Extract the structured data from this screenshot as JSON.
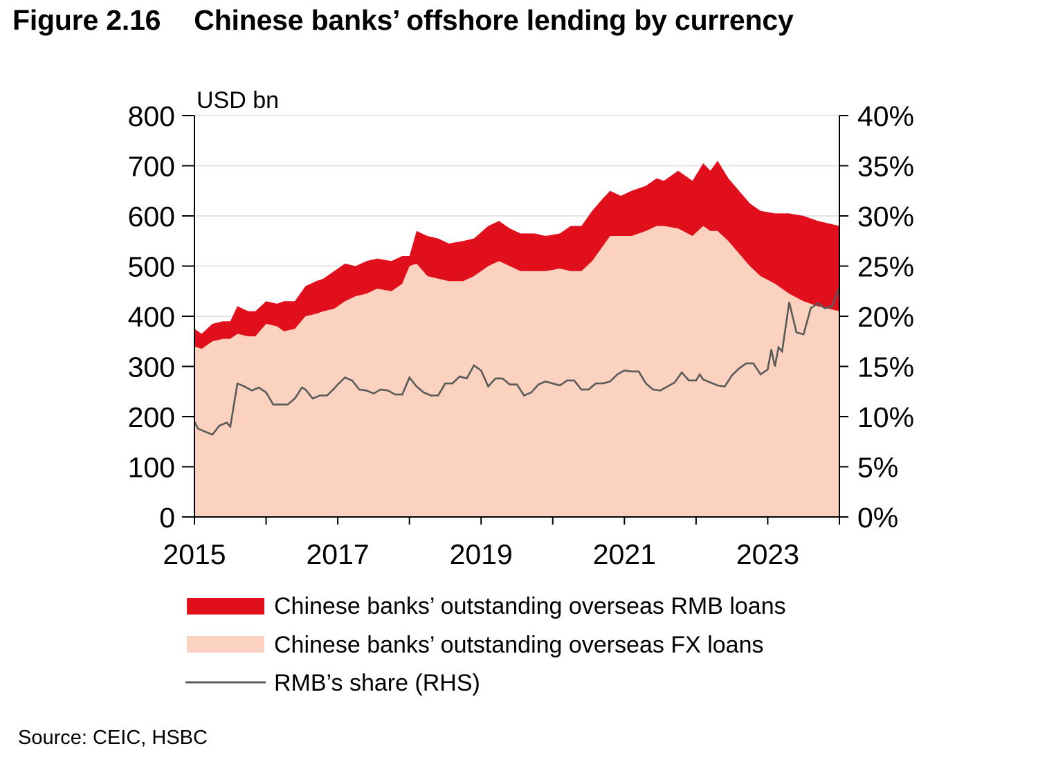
{
  "figure": {
    "number": "Figure 2.16",
    "title": "Chinese banks’ offshore lending by currency",
    "source": "Source: CEIC, HSBC"
  },
  "colors": {
    "rmb_loans": "#e00f1b",
    "fx_loans": "#fad2bf",
    "share_line": "#5a5a5a",
    "grid": "#e3e3e3",
    "axis": "#000000"
  },
  "chart_data": {
    "type": "area",
    "unit_left": "USD bn",
    "x_range": [
      2015,
      2024
    ],
    "x_ticks": [
      "2015",
      "2017",
      "2019",
      "2021",
      "2023"
    ],
    "y_left": {
      "range": [
        0,
        800
      ],
      "ticks": [
        "0",
        "100",
        "200",
        "300",
        "400",
        "500",
        "600",
        "700",
        "800"
      ]
    },
    "y_right": {
      "range": [
        0,
        40
      ],
      "ticks": [
        "0%",
        "5%",
        "10%",
        "15%",
        "20%",
        "25%",
        "30%",
        "35%",
        "40%"
      ]
    },
    "grid": true,
    "legend_placement": "bottom",
    "series": [
      {
        "name": "Chinese banks’ outstanding overseas RMB loans",
        "kind": "stacked-area-top",
        "x": [
          2015.0,
          2015.1,
          2015.25,
          2015.4,
          2015.5,
          2015.6,
          2015.75,
          2015.85,
          2016.0,
          2016.15,
          2016.25,
          2016.4,
          2016.55,
          2016.7,
          2016.8,
          2016.95,
          2017.1,
          2017.25,
          2017.4,
          2017.55,
          2017.75,
          2017.9,
          2018.0,
          2018.1,
          2018.25,
          2018.4,
          2018.55,
          2018.75,
          2018.9,
          2019.1,
          2019.25,
          2019.4,
          2019.55,
          2019.75,
          2019.9,
          2020.1,
          2020.25,
          2020.4,
          2020.55,
          2020.7,
          2020.8,
          2020.95,
          2021.1,
          2021.3,
          2021.45,
          2021.55,
          2021.75,
          2021.95,
          2022.1,
          2022.2,
          2022.3,
          2022.45,
          2022.6,
          2022.75,
          2022.9,
          2023.1,
          2023.3,
          2023.5,
          2023.7,
          2023.85,
          2024.0
        ],
        "values": [
          375,
          365,
          385,
          390,
          390,
          420,
          410,
          410,
          430,
          425,
          430,
          430,
          460,
          470,
          475,
          490,
          505,
          500,
          510,
          515,
          510,
          520,
          520,
          570,
          560,
          555,
          545,
          550,
          555,
          580,
          590,
          575,
          565,
          565,
          560,
          565,
          580,
          580,
          610,
          635,
          650,
          640,
          650,
          660,
          675,
          670,
          690,
          670,
          705,
          690,
          710,
          675,
          650,
          625,
          610,
          605,
          605,
          600,
          590,
          585,
          580
        ]
      },
      {
        "name": "Chinese banks’ outstanding overseas FX loans",
        "kind": "area",
        "x": [
          2015.0,
          2015.1,
          2015.25,
          2015.4,
          2015.5,
          2015.6,
          2015.75,
          2015.85,
          2016.0,
          2016.15,
          2016.25,
          2016.4,
          2016.55,
          2016.7,
          2016.8,
          2016.95,
          2017.1,
          2017.25,
          2017.4,
          2017.55,
          2017.75,
          2017.9,
          2018.0,
          2018.1,
          2018.25,
          2018.4,
          2018.55,
          2018.75,
          2018.9,
          2019.1,
          2019.25,
          2019.4,
          2019.55,
          2019.75,
          2019.9,
          2020.1,
          2020.25,
          2020.4,
          2020.55,
          2020.7,
          2020.8,
          2020.95,
          2021.1,
          2021.3,
          2021.45,
          2021.55,
          2021.75,
          2021.95,
          2022.1,
          2022.2,
          2022.3,
          2022.45,
          2022.6,
          2022.75,
          2022.9,
          2023.1,
          2023.3,
          2023.5,
          2023.7,
          2023.85,
          2024.0
        ],
        "values": [
          340,
          335,
          350,
          355,
          355,
          365,
          360,
          360,
          385,
          380,
          370,
          375,
          400,
          405,
          410,
          415,
          430,
          440,
          445,
          455,
          450,
          465,
          500,
          505,
          480,
          475,
          470,
          470,
          480,
          500,
          510,
          500,
          490,
          490,
          490,
          495,
          490,
          490,
          510,
          540,
          560,
          560,
          560,
          570,
          580,
          580,
          575,
          560,
          580,
          570,
          570,
          550,
          525,
          500,
          480,
          465,
          445,
          430,
          420,
          415,
          410
        ]
      },
      {
        "name": "RMB’s share (RHS)",
        "kind": "line",
        "axis": "right",
        "x": [
          2015.0,
          2015.05,
          2015.15,
          2015.25,
          2015.35,
          2015.45,
          2015.5,
          2015.6,
          2015.7,
          2015.8,
          2015.9,
          2016.0,
          2016.1,
          2016.2,
          2016.3,
          2016.4,
          2016.5,
          2016.55,
          2016.65,
          2016.75,
          2016.85,
          2016.95,
          2017.0,
          2017.1,
          2017.2,
          2017.3,
          2017.4,
          2017.5,
          2017.6,
          2017.7,
          2017.8,
          2017.9,
          2018.0,
          2018.1,
          2018.2,
          2018.3,
          2018.4,
          2018.5,
          2018.6,
          2018.7,
          2018.8,
          2018.9,
          2019.0,
          2019.1,
          2019.2,
          2019.3,
          2019.4,
          2019.5,
          2019.6,
          2019.7,
          2019.8,
          2019.9,
          2020.0,
          2020.1,
          2020.2,
          2020.3,
          2020.4,
          2020.5,
          2020.6,
          2020.7,
          2020.8,
          2020.9,
          2021.0,
          2021.1,
          2021.2,
          2021.3,
          2021.4,
          2021.5,
          2021.6,
          2021.7,
          2021.8,
          2021.9,
          2022.0,
          2022.05,
          2022.1,
          2022.2,
          2022.3,
          2022.4,
          2022.5,
          2022.6,
          2022.7,
          2022.8,
          2022.9,
          2023.0,
          2023.05,
          2023.1,
          2023.15,
          2023.2,
          2023.3,
          2023.4,
          2023.5,
          2023.6,
          2023.7,
          2023.8,
          2023.9,
          2024.0
        ],
        "values": [
          9.5,
          8.8,
          8.5,
          8.2,
          9.1,
          9.4,
          9.0,
          13.3,
          13.0,
          12.6,
          12.9,
          12.4,
          11.2,
          11.2,
          11.2,
          11.8,
          12.9,
          12.7,
          11.8,
          12.1,
          12.1,
          12.8,
          13.2,
          13.9,
          13.6,
          12.7,
          12.6,
          12.3,
          12.7,
          12.6,
          12.2,
          12.2,
          13.9,
          13.0,
          12.4,
          12.1,
          12.1,
          13.3,
          13.3,
          14.0,
          13.8,
          15.1,
          14.6,
          13.0,
          13.8,
          13.8,
          13.2,
          13.2,
          12.1,
          12.4,
          13.2,
          13.5,
          13.3,
          13.1,
          13.6,
          13.6,
          12.7,
          12.7,
          13.3,
          13.3,
          13.5,
          14.2,
          14.6,
          14.5,
          14.5,
          13.3,
          12.7,
          12.6,
          13.0,
          13.4,
          14.4,
          13.6,
          13.6,
          14.2,
          13.7,
          13.4,
          13.1,
          13.0,
          14.1,
          14.8,
          15.3,
          15.3,
          14.2,
          14.7,
          16.7,
          15.0,
          16.9,
          16.5,
          21.4,
          18.4,
          18.2,
          20.8,
          21.3,
          20.8,
          21.0,
          22.9
        ]
      }
    ]
  }
}
